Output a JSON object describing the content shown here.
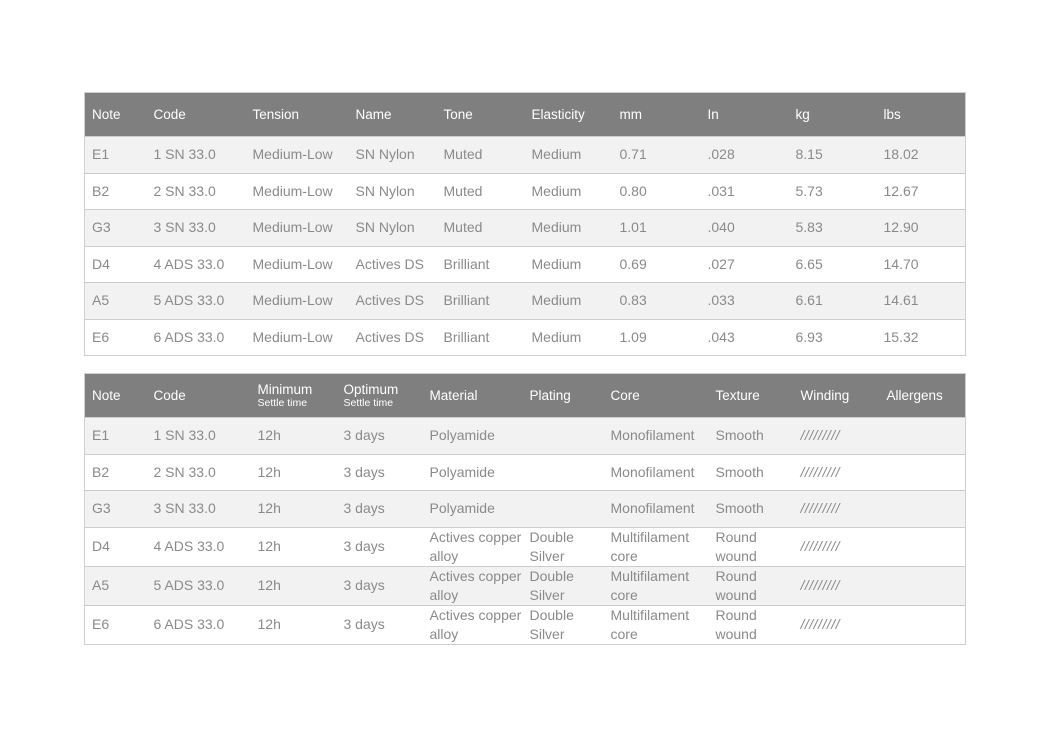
{
  "table1": {
    "headers": [
      {
        "label": "Note"
      },
      {
        "label": "Code"
      },
      {
        "label": "Tension"
      },
      {
        "label": "Name"
      },
      {
        "label": "Tone"
      },
      {
        "label": "Elasticity"
      },
      {
        "label": "mm"
      },
      {
        "label": "In"
      },
      {
        "label": "kg"
      },
      {
        "label": "lbs"
      }
    ],
    "rows": [
      [
        "E1",
        "1 SN 33.0",
        "Medium-Low",
        "SN Nylon",
        "Muted",
        "Medium",
        "0.71",
        ".028",
        "8.15",
        "18.02"
      ],
      [
        "B2",
        "2 SN 33.0",
        "Medium-Low",
        "SN Nylon",
        "Muted",
        "Medium",
        "0.80",
        ".031",
        "5.73",
        "12.67"
      ],
      [
        "G3",
        "3 SN 33.0",
        "Medium-Low",
        "SN Nylon",
        "Muted",
        "Medium",
        "1.01",
        ".040",
        "5.83",
        "12.90"
      ],
      [
        "D4",
        "4 ADS 33.0",
        "Medium-Low",
        "Actives DS",
        "Brilliant",
        "Medium",
        "0.69",
        ".027",
        "6.65",
        "14.70"
      ],
      [
        "A5",
        "5 ADS 33.0",
        "Medium-Low",
        "Actives DS",
        "Brilliant",
        "Medium",
        "0.83",
        ".033",
        "6.61",
        "14.61"
      ],
      [
        "E6",
        "6 ADS 33.0",
        "Medium-Low",
        "Actives DS",
        "Brilliant",
        "Medium",
        "1.09",
        ".043",
        "6.93",
        "15.32"
      ]
    ]
  },
  "table2": {
    "headers": [
      {
        "label": "Note"
      },
      {
        "label": "Code"
      },
      {
        "label": "Minimum",
        "sub": "Settle time"
      },
      {
        "label": "Optimum",
        "sub": "Settle time"
      },
      {
        "label": "Material"
      },
      {
        "label": "Plating"
      },
      {
        "label": "Core"
      },
      {
        "label": "Texture"
      },
      {
        "label": "Winding"
      },
      {
        "label": "Allergens"
      }
    ],
    "rows": [
      [
        "E1",
        "1 SN 33.0",
        "12h",
        "3 days",
        "Polyamide",
        "",
        "Monofilament",
        "Smooth",
        "/////////",
        ""
      ],
      [
        "B2",
        "2 SN 33.0",
        "12h",
        "3 days",
        "Polyamide",
        "",
        "Monofilament",
        "Smooth",
        "/////////",
        ""
      ],
      [
        "G3",
        "3 SN 33.0",
        "12h",
        "3 days",
        "Polyamide",
        "",
        "Monofilament",
        "Smooth",
        "/////////",
        ""
      ],
      [
        "D4",
        "4 ADS 33.0",
        "12h",
        "3 days",
        "Actives copper alloy",
        "Double Silver",
        "Multifilament core",
        "Round wound",
        "/////////",
        ""
      ],
      [
        "A5",
        "5 ADS 33.0",
        "12h",
        "3 days",
        "Actives copper alloy",
        "Double Silver",
        "Multifilament core",
        "Round wound",
        "/////////",
        ""
      ],
      [
        "E6",
        "6 ADS 33.0",
        "12h",
        "3 days",
        "Actives copper alloy",
        "Double Silver",
        "Multifilament core",
        "Round wound",
        "/////////",
        ""
      ]
    ]
  }
}
